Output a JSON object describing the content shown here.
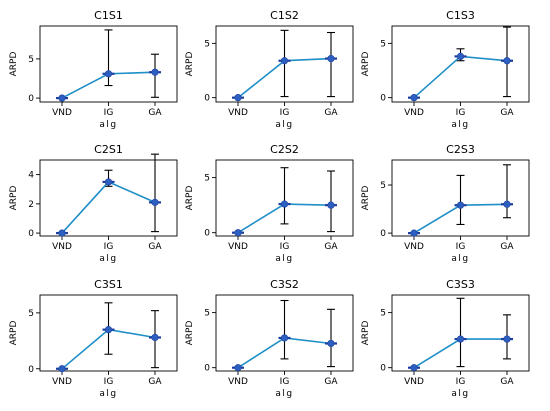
{
  "chart_data": {
    "type": "line",
    "categories": [
      "VND",
      "IG",
      "GA"
    ],
    "xlabel": "alg",
    "ylabel": "ARPD",
    "grid": false,
    "line_color": "#1f8fc8",
    "marker_color": "#2c5fc0",
    "error_color": "#000000",
    "panels": [
      {
        "title": "C1S1",
        "ylim": [
          -0.5,
          9.2
        ],
        "yticks": [
          0,
          5
        ],
        "values": [
          0.0,
          3.1,
          3.3
        ],
        "err_low": [
          0.0,
          1.6,
          0.1
        ],
        "err_high": [
          0.0,
          8.7,
          5.6
        ]
      },
      {
        "title": "C1S2",
        "ylim": [
          -0.4,
          6.6
        ],
        "yticks": [
          0,
          5
        ],
        "values": [
          0.0,
          3.4,
          3.6
        ],
        "err_low": [
          0.0,
          0.1,
          0.1
        ],
        "err_high": [
          0.0,
          6.2,
          6.0
        ]
      },
      {
        "title": "C1S3",
        "ylim": [
          -0.4,
          6.6
        ],
        "yticks": [
          0,
          5
        ],
        "values": [
          0.0,
          3.8,
          3.4
        ],
        "err_low": [
          0.0,
          3.4,
          0.1
        ],
        "err_high": [
          0.0,
          4.5,
          6.5
        ]
      },
      {
        "title": "C2S1",
        "ylim": [
          -0.2,
          5.0
        ],
        "yticks": [
          0,
          2,
          4
        ],
        "values": [
          0.0,
          3.5,
          2.1
        ],
        "err_low": [
          0.0,
          3.2,
          0.1
        ],
        "err_high": [
          0.0,
          4.3,
          5.4
        ]
      },
      {
        "title": "C2S2",
        "ylim": [
          -0.3,
          6.6
        ],
        "yticks": [
          0,
          5
        ],
        "values": [
          0.0,
          2.6,
          2.5
        ],
        "err_low": [
          0.0,
          0.8,
          0.1
        ],
        "err_high": [
          0.0,
          5.9,
          5.6
        ]
      },
      {
        "title": "C2S3",
        "ylim": [
          -0.3,
          7.6
        ],
        "yticks": [
          0,
          5
        ],
        "values": [
          0.0,
          2.9,
          3.0
        ],
        "err_low": [
          0.0,
          0.9,
          1.6
        ],
        "err_high": [
          0.0,
          6.0,
          7.1
        ]
      },
      {
        "title": "C3S1",
        "ylim": [
          -0.2,
          6.6
        ],
        "yticks": [
          0,
          5
        ],
        "values": [
          0.0,
          3.5,
          2.8
        ],
        "err_low": [
          0.0,
          1.3,
          0.1
        ],
        "err_high": [
          0.0,
          5.9,
          5.2
        ]
      },
      {
        "title": "C3S2",
        "ylim": [
          -0.3,
          6.6
        ],
        "yticks": [
          0,
          5
        ],
        "values": [
          0.0,
          2.7,
          2.2
        ],
        "err_low": [
          0.0,
          0.8,
          0.1
        ],
        "err_high": [
          0.0,
          6.1,
          5.3
        ]
      },
      {
        "title": "C3S3",
        "ylim": [
          -0.3,
          6.6
        ],
        "yticks": [
          0,
          5
        ],
        "values": [
          0.0,
          2.6,
          2.6
        ],
        "err_low": [
          0.0,
          0.1,
          0.8
        ],
        "err_high": [
          0.0,
          6.3,
          4.8
        ]
      }
    ]
  }
}
